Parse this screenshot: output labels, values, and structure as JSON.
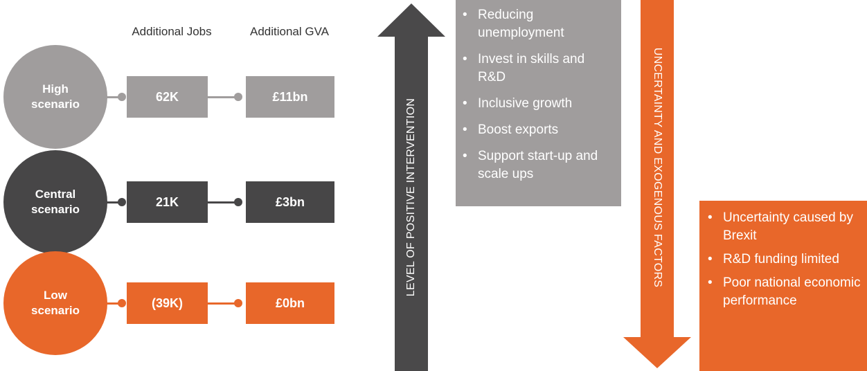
{
  "headers": [
    "Additional Jobs",
    "Additional GVA"
  ],
  "scenarios": [
    {
      "label": "High scenario",
      "jobs": "62K",
      "gva": "£11bn"
    },
    {
      "label": "Central scenario",
      "jobs": "21K",
      "gva": "£3bn"
    },
    {
      "label": "Low scenario",
      "jobs": "(39K)",
      "gva": "£0bn"
    }
  ],
  "intervention": {
    "label": "LEVEL OF POSITIVE INTERVENTION",
    "items": [
      "Reducing unemployment",
      "Invest in skills and R&D",
      "Inclusive growth",
      "Boost exports",
      "Support start-up and scale ups"
    ]
  },
  "uncertainty": {
    "label": "UNCERTAINTY AND EXOGENOUS FACTORS",
    "items": [
      "Uncertainty caused by Brexit",
      "R&D funding limited",
      "Poor national economic performance"
    ]
  }
}
